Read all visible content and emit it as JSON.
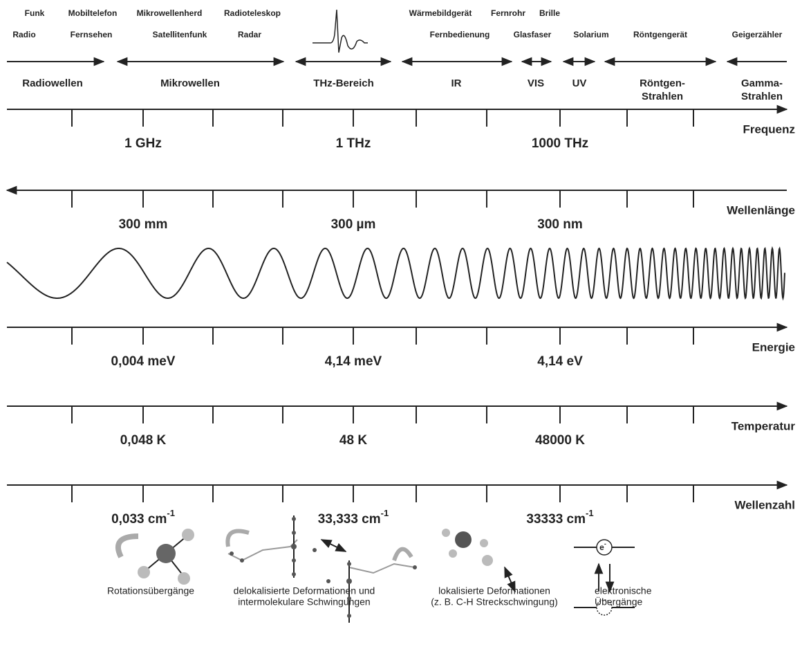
{
  "applications_top": [
    "Funk",
    "Mobiltelefon",
    "Mikrowellenherd",
    "Radioteleskop",
    "Wärmebildgerät",
    "Fernrohr",
    "Brille"
  ],
  "applications_bottom": [
    "Radio",
    "Fernsehen",
    "Satellitenfunk",
    "Radar",
    "Fernbedienung",
    "Glasfaser",
    "Solarium",
    "Röntgengerät",
    "Geigerzähler"
  ],
  "regions": [
    [
      "Radiowellen"
    ],
    [
      "Mikrowellen"
    ],
    [
      "THz-Bereich"
    ],
    [
      "IR"
    ],
    [
      "VIS"
    ],
    [
      "UV"
    ],
    [
      "Röntgen-",
      "Strahlen"
    ],
    [
      "Gamma-",
      "Strahlen"
    ]
  ],
  "scales": [
    {
      "name": "Frequenz",
      "labels": [
        "1 GHz",
        "1 THz",
        "1000 THz"
      ]
    },
    {
      "name": "Wellenlänge",
      "labels": [
        "300 mm",
        "300 µm",
        "300 nm"
      ]
    },
    {
      "name": "Energie",
      "labels": [
        "0,004 meV",
        "4,14 meV",
        "4,14 eV"
      ]
    },
    {
      "name": "Temperatur",
      "labels": [
        "0,048 K",
        "48 K",
        "48000 K"
      ]
    },
    {
      "name": "Wellenzahl",
      "labels": [
        {
          "text": "0,033 cm",
          "sup": "-1"
        },
        {
          "text": "33,333 cm",
          "sup": "-1"
        },
        {
          "text": "33333 cm",
          "sup": "-1"
        }
      ]
    }
  ],
  "transitions": [
    [
      "Rotationsübergänge"
    ],
    [
      "delokalisierte Deformationen und",
      "intermolekulare Schwingungen"
    ],
    [
      "lokalisierte Deformationen",
      "(z. B. C-H Streckschwingung)"
    ],
    [
      "elektronische",
      "Übergänge"
    ]
  ],
  "electron": {
    "symbol": "e",
    "charge": "-"
  }
}
